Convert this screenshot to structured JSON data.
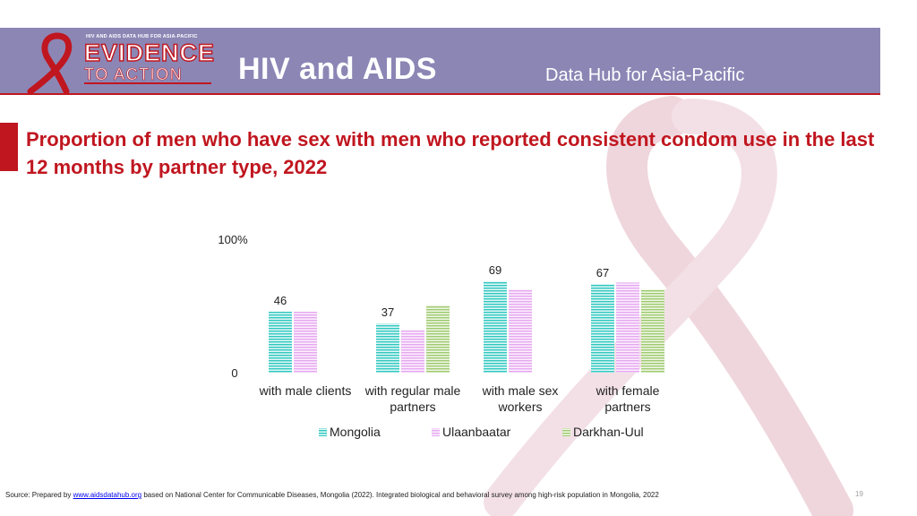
{
  "header": {
    "logo_top": "HIV AND AIDS DATA HUB FOR ASIA-PACIFIC",
    "logo_evidence": "EVIDENCE",
    "logo_to_action": "TO ACTION",
    "title": "HIV and AIDS",
    "subtitle": "Data Hub for Asia-Pacific"
  },
  "colors": {
    "banner": "#8c86b5",
    "accent": "#c0161f",
    "mongolia": "#2ec8c0",
    "ulaanbaatar": "#e6a6f0",
    "darkhan": "#9dc96e"
  },
  "chart_data": {
    "type": "bar",
    "title": "Proportion of men who have sex with men who reported consistent condom use in the last 12 months by partner type, 2022",
    "categories": [
      [
        "with male clients"
      ],
      [
        "with regular male",
        "partners"
      ],
      [
        "with male sex",
        "workers"
      ],
      [
        "with female",
        "partners"
      ]
    ],
    "series": [
      {
        "name": "Mongolia",
        "values": [
          46,
          37,
          69,
          67
        ]
      },
      {
        "name": "Ulaanbaatar",
        "values": [
          46,
          32,
          63,
          68
        ]
      },
      {
        "name": "Darkhan-Uul",
        "values": [
          null,
          51,
          null,
          63
        ]
      }
    ],
    "data_labels": [
      {
        "category": 0,
        "series": 0,
        "text": "46"
      },
      {
        "category": 1,
        "series": 0,
        "text": "37"
      },
      {
        "category": 2,
        "series": 0,
        "text": "69"
      },
      {
        "category": 3,
        "series": 0,
        "text": "67"
      }
    ],
    "y_tick_labels": [
      "0",
      "100%"
    ],
    "ylim": [
      0,
      100
    ],
    "legend": "bottom",
    "xlabel": "",
    "ylabel": ""
  },
  "footer": {
    "source_prefix": "Source: Prepared by",
    "source_link": "www.aidsdatahub.org",
    "source_suffix": "based on National Center for Communicable Diseases, Mongolia (2022). Integrated biological and behavioral survey among high-risk population in Mongolia, 2022",
    "page_number": "19"
  }
}
